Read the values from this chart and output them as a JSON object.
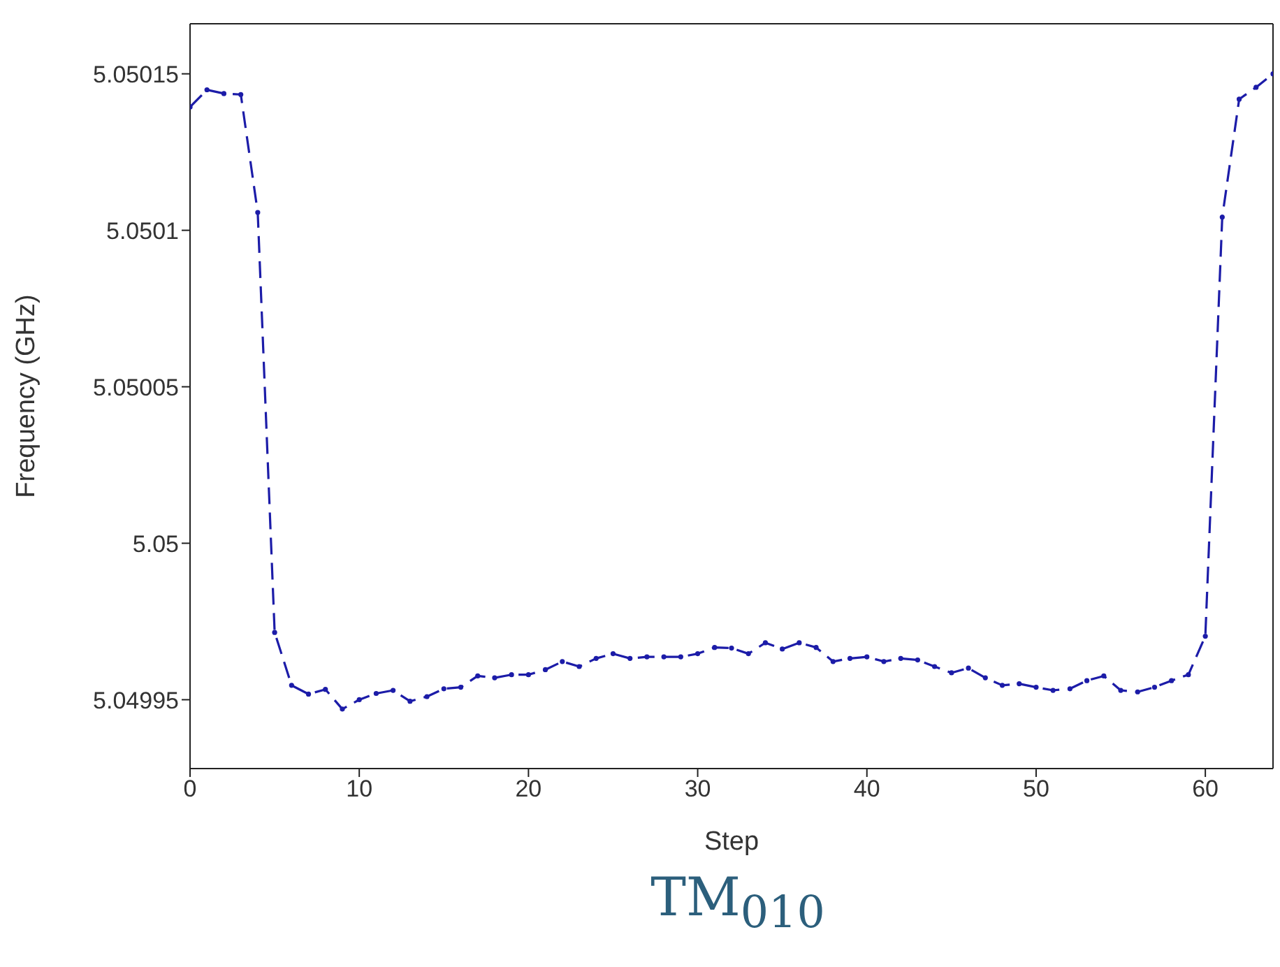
{
  "chart_data": {
    "type": "line",
    "xlabel": "Step",
    "ylabel": "Frequency (GHz)",
    "annotations": [
      "TM$_{010}$"
    ],
    "x": [
      0,
      1,
      2,
      3,
      4,
      5,
      6,
      7,
      8,
      9,
      10,
      11,
      12,
      13,
      14,
      15,
      16,
      17,
      18,
      19,
      20,
      21,
      22,
      23,
      24,
      25,
      26,
      27,
      28,
      29,
      30,
      31,
      32,
      33,
      34,
      35,
      36,
      37,
      38,
      39,
      40,
      41,
      42,
      43,
      44,
      45,
      46,
      47,
      48,
      49,
      50,
      51,
      52,
      53,
      54,
      55,
      56,
      57,
      58,
      59,
      60,
      61,
      62,
      63,
      64
    ],
    "series": [
      {
        "color": "#1c1ca8",
        "values": [
          5.0501394,
          5.0501449,
          5.0501437,
          5.0501434,
          5.0501057,
          5.0499715,
          5.0499546,
          5.0499518,
          5.0499533,
          5.049947,
          5.04995,
          5.049952,
          5.049953,
          5.0499495,
          5.049951,
          5.0499535,
          5.049954,
          5.0499576,
          5.049957,
          5.049958,
          5.049958,
          5.0499596,
          5.0499622,
          5.0499606,
          5.0499632,
          5.0499647,
          5.0499632,
          5.0499637,
          5.0499637,
          5.0499637,
          5.0499647,
          5.0499667,
          5.0499665,
          5.0499647,
          5.0499682,
          5.0499662,
          5.0499682,
          5.0499667,
          5.0499622,
          5.0499632,
          5.0499637,
          5.0499622,
          5.0499632,
          5.0499627,
          5.0499606,
          5.0499586,
          5.0499601,
          5.049957,
          5.0499546,
          5.0499551,
          5.049954,
          5.049953,
          5.0499535,
          5.0499561,
          5.0499576,
          5.049953,
          5.0499525,
          5.049954,
          5.0499561,
          5.049958,
          5.0499703,
          5.0501042,
          5.0501419,
          5.0501457,
          5.05015
        ]
      }
    ],
    "xlim": [
      0,
      64
    ],
    "xticks": [
      0,
      10,
      20,
      30,
      40,
      50,
      60
    ],
    "ylim": [
      5.049928,
      5.050166
    ],
    "yticks": [
      5.04995,
      5.05,
      5.05005,
      5.0501,
      5.05015
    ],
    "grid": false,
    "legend": false,
    "marker": "circle",
    "line_style": "dashed"
  }
}
